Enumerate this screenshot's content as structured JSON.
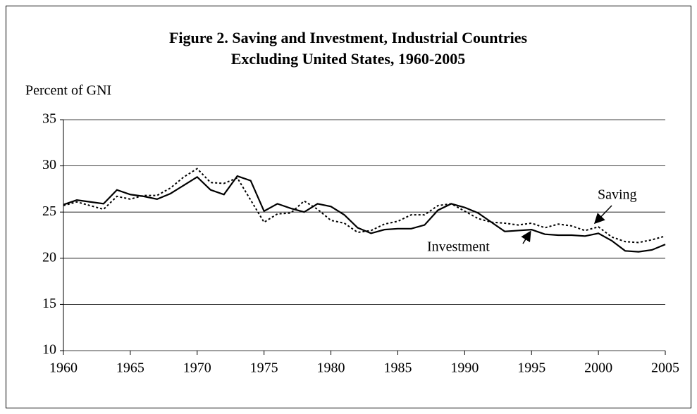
{
  "chart_data": {
    "type": "line",
    "title": [
      "Figure 2. Saving and Investment, Industrial Countries",
      "Excluding United States, 1960-2005"
    ],
    "y_label": "Percent of GNI",
    "x": [
      1960,
      1961,
      1962,
      1963,
      1964,
      1965,
      1966,
      1967,
      1968,
      1969,
      1970,
      1971,
      1972,
      1973,
      1974,
      1975,
      1976,
      1977,
      1978,
      1979,
      1980,
      1981,
      1982,
      1983,
      1984,
      1985,
      1986,
      1987,
      1988,
      1989,
      1990,
      1991,
      1992,
      1993,
      1994,
      1995,
      1996,
      1997,
      1998,
      1999,
      2000,
      2001,
      2002,
      2003,
      2004,
      2005
    ],
    "series": [
      {
        "name": "Investment",
        "color": "#000000",
        "dash": "solid",
        "values": [
          25.8,
          26.3,
          26.1,
          25.9,
          27.4,
          26.9,
          26.7,
          26.4,
          27.0,
          27.9,
          28.8,
          27.4,
          26.9,
          28.9,
          28.4,
          25.1,
          25.9,
          25.4,
          25.0,
          25.9,
          25.6,
          24.7,
          23.3,
          22.7,
          23.1,
          23.2,
          23.2,
          23.6,
          25.2,
          25.9,
          25.5,
          24.9,
          23.9,
          22.9,
          23.0,
          23.1,
          22.6,
          22.5,
          22.5,
          22.4,
          22.7,
          21.9,
          20.8,
          20.7,
          20.9,
          21.5
        ]
      },
      {
        "name": "Saving",
        "color": "#000000",
        "dash": "dotted",
        "values": [
          25.7,
          26.1,
          25.7,
          25.3,
          26.7,
          26.4,
          26.8,
          26.8,
          27.6,
          28.8,
          29.7,
          28.2,
          28.1,
          28.7,
          26.3,
          23.9,
          24.8,
          24.9,
          26.2,
          25.3,
          24.1,
          23.8,
          22.8,
          23.0,
          23.7,
          24.0,
          24.7,
          24.7,
          25.7,
          25.9,
          25.1,
          24.3,
          23.9,
          23.8,
          23.6,
          23.8,
          23.3,
          23.7,
          23.5,
          23.0,
          23.4,
          22.3,
          21.8,
          21.7,
          22.0,
          22.4
        ]
      }
    ],
    "annotations": [
      {
        "text": "Saving"
      },
      {
        "text": "Investment"
      }
    ],
    "xlim": [
      1960,
      2005
    ],
    "xticks": [
      1960,
      1965,
      1970,
      1975,
      1980,
      1985,
      1990,
      1995,
      2000,
      2005
    ],
    "ylim": [
      10,
      35
    ],
    "yticks": [
      10,
      15,
      20,
      25,
      30,
      35
    ],
    "grid": true
  }
}
